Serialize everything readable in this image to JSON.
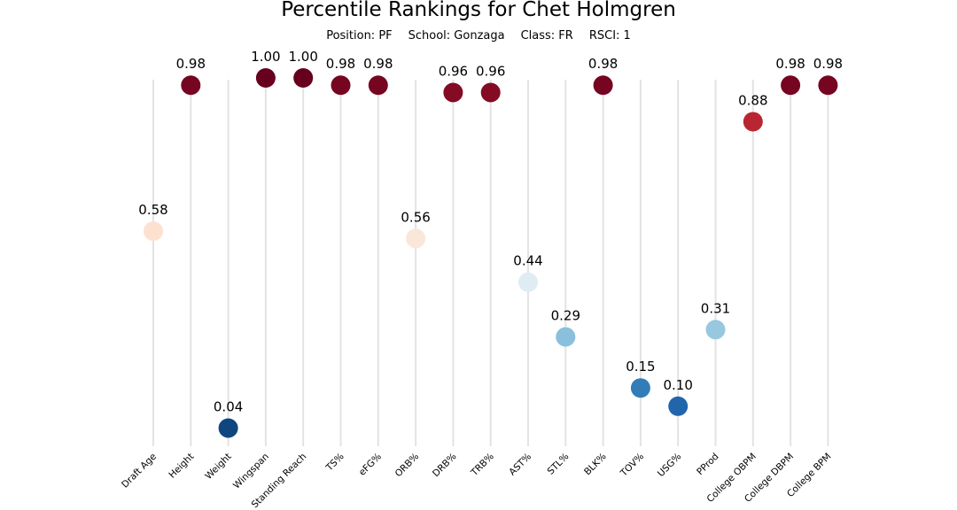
{
  "header": {
    "title": "Percentile Rankings for Chet Holmgren",
    "position": "Position: PF",
    "school": "School: Gonzaga",
    "class": "Class: FR",
    "rsci": "RSCI: 1"
  },
  "chart_data": {
    "type": "scatter",
    "title": "Percentile Rankings for Chet Holmgren",
    "categories": [
      "Draft Age",
      "Height",
      "Weight",
      "Wingspan",
      "Standing Reach",
      "TS%",
      "eFG%",
      "ORB%",
      "DRB%",
      "TRB%",
      "AST%",
      "STL%",
      "BLK%",
      "TOV%",
      "USG%",
      "PProd",
      "College OBPM",
      "College DBPM",
      "College BPM"
    ],
    "values": [
      0.58,
      0.98,
      0.04,
      1.0,
      1.0,
      0.98,
      0.98,
      0.56,
      0.96,
      0.96,
      0.44,
      0.29,
      0.98,
      0.15,
      0.1,
      0.31,
      0.88,
      0.98,
      0.98
    ],
    "labels": [
      "0.58",
      "0.98",
      "0.04",
      "1.00",
      "1.00",
      "0.98",
      "0.98",
      "0.56",
      "0.96",
      "0.96",
      "0.44",
      "0.29",
      "0.98",
      "0.15",
      "0.10",
      "0.31",
      "0.88",
      "0.98",
      "0.98"
    ],
    "ylim": [
      0,
      1
    ],
    "grid": "vertical lines per category",
    "colormap": "red-blue diverging (high = dark red, low = dark blue)"
  }
}
